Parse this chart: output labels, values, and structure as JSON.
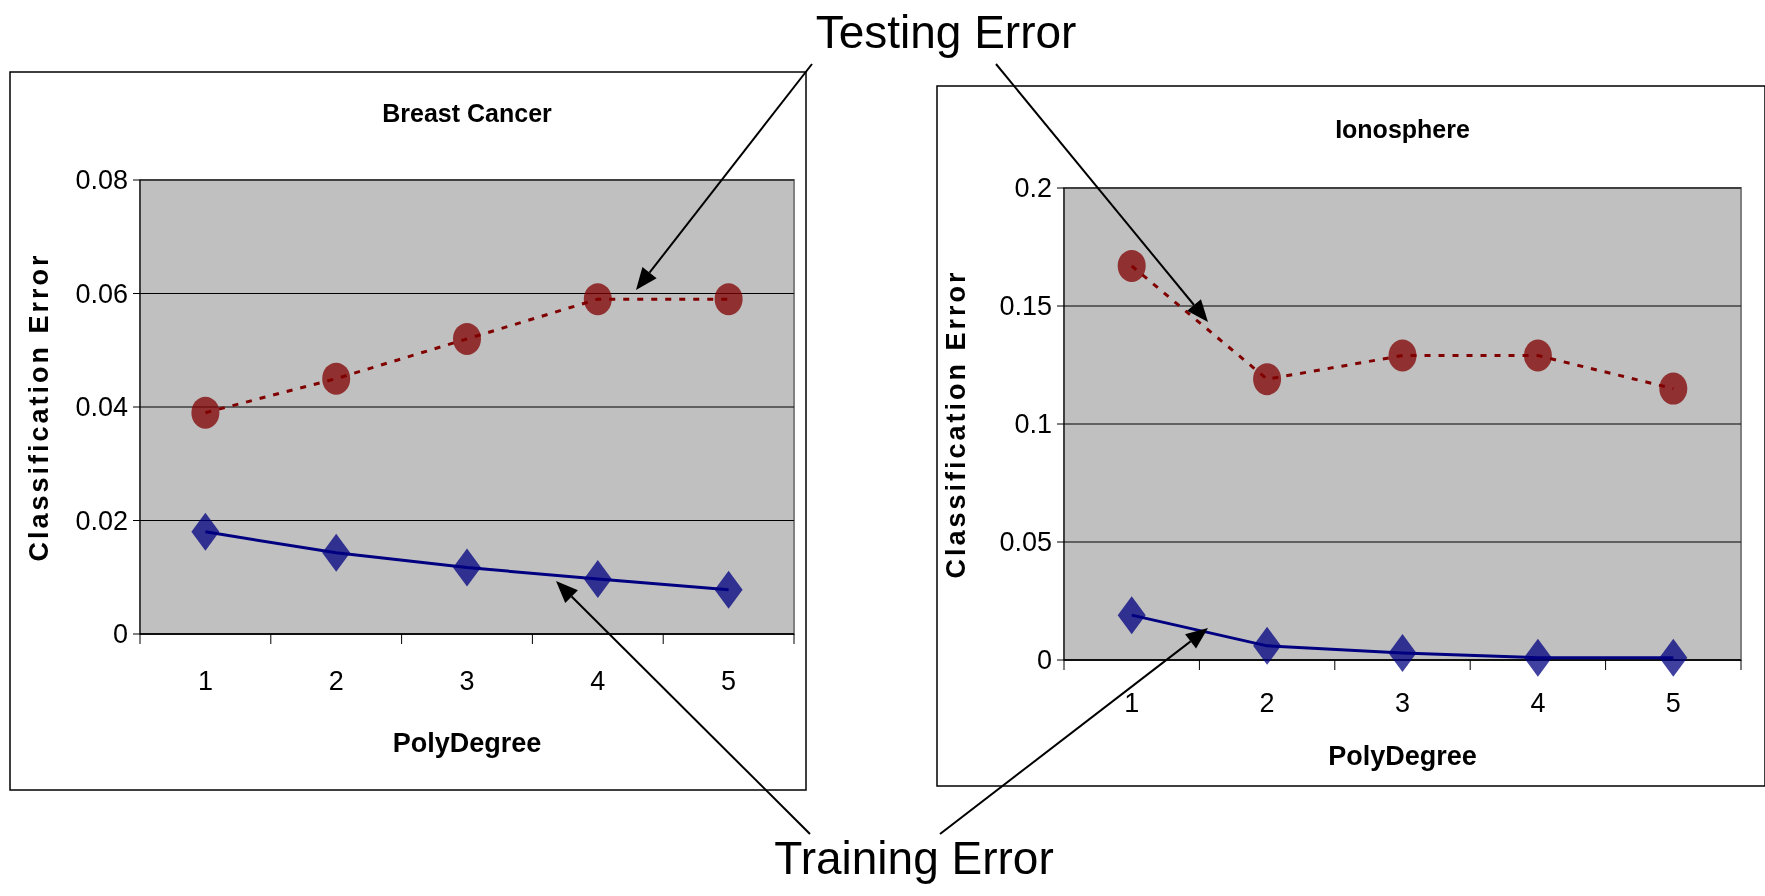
{
  "chart_data": [
    {
      "type": "line",
      "title": "Breast Cancer",
      "xlabel": "PolyDegree",
      "ylabel": "Classification Error",
      "categories": [
        "1",
        "2",
        "3",
        "4",
        "5"
      ],
      "ylim": [
        0,
        0.08
      ],
      "yticks": [
        0,
        0.02,
        0.04,
        0.06,
        0.08
      ],
      "grid": "y",
      "series": [
        {
          "name": "Testing Error",
          "color": "#800000",
          "marker": "circle",
          "line_style": "dotted",
          "values": [
            0.039,
            0.045,
            0.052,
            0.059,
            0.059
          ]
        },
        {
          "name": "Training Error",
          "color": "#000080",
          "marker": "diamond",
          "line_style": "solid",
          "values": [
            0.018,
            0.0143,
            0.0117,
            0.0097,
            0.0078
          ]
        }
      ]
    },
    {
      "type": "line",
      "title": "Ionosphere",
      "xlabel": "PolyDegree",
      "ylabel": "Classification Error",
      "categories": [
        "1",
        "2",
        "3",
        "4",
        "5"
      ],
      "ylim": [
        0,
        0.2
      ],
      "yticks": [
        0,
        0.05,
        0.1,
        0.15,
        0.2
      ],
      "grid": "y",
      "series": [
        {
          "color": "#800000",
          "marker": "circle",
          "line_style": "dotted",
          "values": [
            0.167,
            0.119,
            0.129,
            0.129,
            0.115
          ]
        },
        {
          "color": "#000080",
          "marker": "diamond",
          "line_style": "solid",
          "values": [
            0.019,
            0.006,
            0.003,
            0.001,
            0.001
          ]
        }
      ]
    }
  ]
}
